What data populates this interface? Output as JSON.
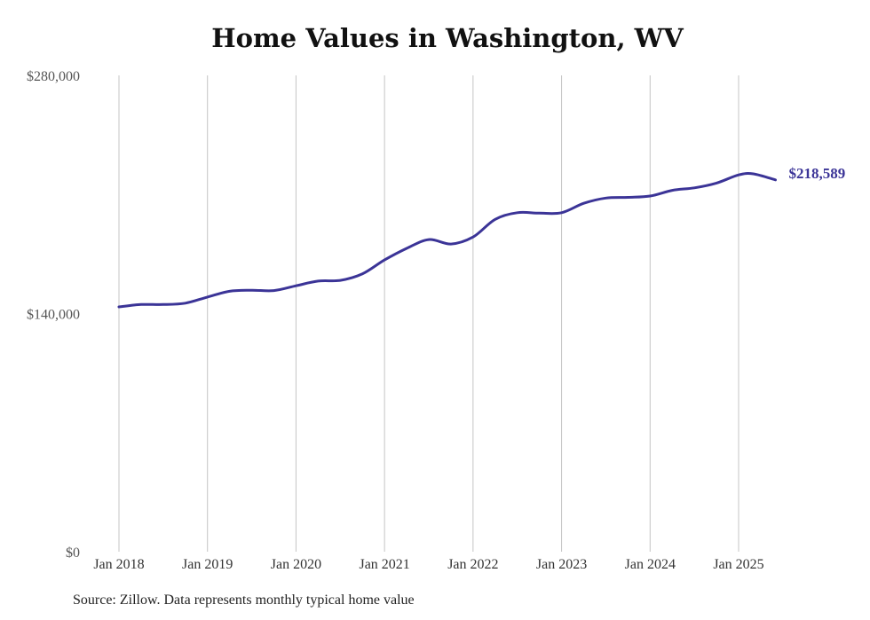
{
  "chart_data": {
    "type": "line",
    "title": "Home Values in Washington, WV",
    "ylim": [
      0,
      280000
    ],
    "y_ticks": [
      {
        "value": 0,
        "label": "$0"
      },
      {
        "value": 140000,
        "label": "$140,000"
      },
      {
        "value": 280000,
        "label": "$280,000"
      }
    ],
    "x_ticks": [
      {
        "date": "2018-01",
        "label": "Jan 2018"
      },
      {
        "date": "2019-01",
        "label": "Jan 2019"
      },
      {
        "date": "2020-01",
        "label": "Jan 2020"
      },
      {
        "date": "2021-01",
        "label": "Jan 2021"
      },
      {
        "date": "2022-01",
        "label": "Jan 2022"
      },
      {
        "date": "2023-01",
        "label": "Jan 2023"
      },
      {
        "date": "2024-01",
        "label": "Jan 2024"
      },
      {
        "date": "2025-01",
        "label": "Jan 2025"
      }
    ],
    "grid": "vertical",
    "series": [
      {
        "color": "#3b3497",
        "points": [
          [
            "2018-01",
            143900
          ],
          [
            "2018-04",
            145300
          ],
          [
            "2018-07",
            145300
          ],
          [
            "2018-10",
            146100
          ],
          [
            "2019-01",
            149700
          ],
          [
            "2019-04",
            153100
          ],
          [
            "2019-07",
            153700
          ],
          [
            "2019-10",
            153500
          ],
          [
            "2020-01",
            156300
          ],
          [
            "2020-04",
            159100
          ],
          [
            "2020-07",
            159500
          ],
          [
            "2020-10",
            163300
          ],
          [
            "2021-01",
            171500
          ],
          [
            "2021-04",
            178300
          ],
          [
            "2021-07",
            183500
          ],
          [
            "2021-10",
            180900
          ],
          [
            "2022-01",
            185000
          ],
          [
            "2022-04",
            195400
          ],
          [
            "2022-07",
            199300
          ],
          [
            "2022-10",
            199000
          ],
          [
            "2023-01",
            199300
          ],
          [
            "2023-04",
            204800
          ],
          [
            "2023-07",
            207900
          ],
          [
            "2023-10",
            208300
          ],
          [
            "2024-01",
            209100
          ],
          [
            "2024-04",
            212400
          ],
          [
            "2024-07",
            213900
          ],
          [
            "2024-10",
            216700
          ],
          [
            "2025-01",
            221500
          ],
          [
            "2025-03",
            222100
          ],
          [
            "2025-06",
            218589
          ]
        ]
      }
    ],
    "end_label": "$218,589"
  },
  "source": "Source: Zillow. Data represents monthly typical home value"
}
